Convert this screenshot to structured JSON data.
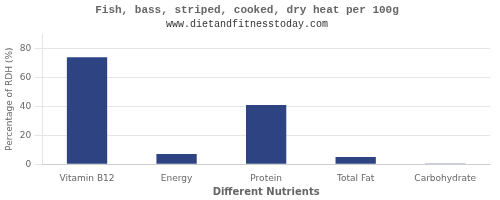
{
  "chart_data": {
    "type": "bar",
    "title": "Fish, bass, striped, cooked, dry heat per 100g",
    "subtitle": "www.dietandfitnesstoday.com",
    "xlabel": "Different Nutrients",
    "ylabel": "Percentage of RDH (%)",
    "categories": [
      "Vitamin B12",
      "Energy",
      "Protein",
      "Total Fat",
      "Carbohydrate"
    ],
    "values": [
      74,
      7,
      41,
      5,
      0.5
    ],
    "color": "#2e4482",
    "ylim": [
      0,
      90
    ],
    "yticks": [
      0,
      20,
      40,
      60,
      80
    ],
    "grid": true
  }
}
